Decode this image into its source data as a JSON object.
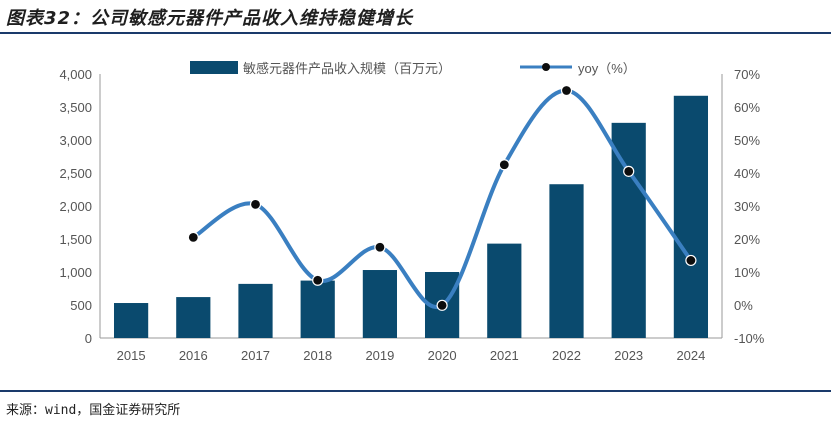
{
  "title": "图表32：公司敏感元器件产品收入维持稳健增长",
  "source": "来源：wind，国金证券研究所",
  "colors": {
    "bar": "#0a4a6e",
    "line": "#3a7fc1",
    "marker": "#0d0d0d",
    "rule": "#1a3a6b"
  },
  "chart_data": {
    "type": "bar",
    "categories": [
      "2015",
      "2016",
      "2017",
      "2018",
      "2019",
      "2020",
      "2021",
      "2022",
      "2023",
      "2024"
    ],
    "series": [
      {
        "name": "敏感元器件产品收入规模（百万元）",
        "type": "bar",
        "axis": "left",
        "values": [
          530,
          620,
          820,
          870,
          1030,
          1000,
          1430,
          2330,
          3260,
          3670
        ]
      },
      {
        "name": "yoy（%）",
        "type": "line",
        "axis": "right",
        "smooth": true,
        "values": [
          null,
          20.5,
          30.5,
          7.5,
          17.5,
          -0.1,
          42.5,
          65,
          40.5,
          13.5
        ]
      }
    ],
    "left_axis": {
      "min": 0,
      "max": 4000,
      "step": 500,
      "tick_labels": [
        "0",
        "500",
        "1,000",
        "1,500",
        "2,000",
        "2,500",
        "3,000",
        "3,500",
        "4,000"
      ]
    },
    "right_axis": {
      "min": -10,
      "max": 70,
      "step": 10,
      "tick_labels": [
        "-10%",
        "0%",
        "10%",
        "20%",
        "30%",
        "40%",
        "50%",
        "60%",
        "70%"
      ]
    },
    "legend_position": "top"
  }
}
